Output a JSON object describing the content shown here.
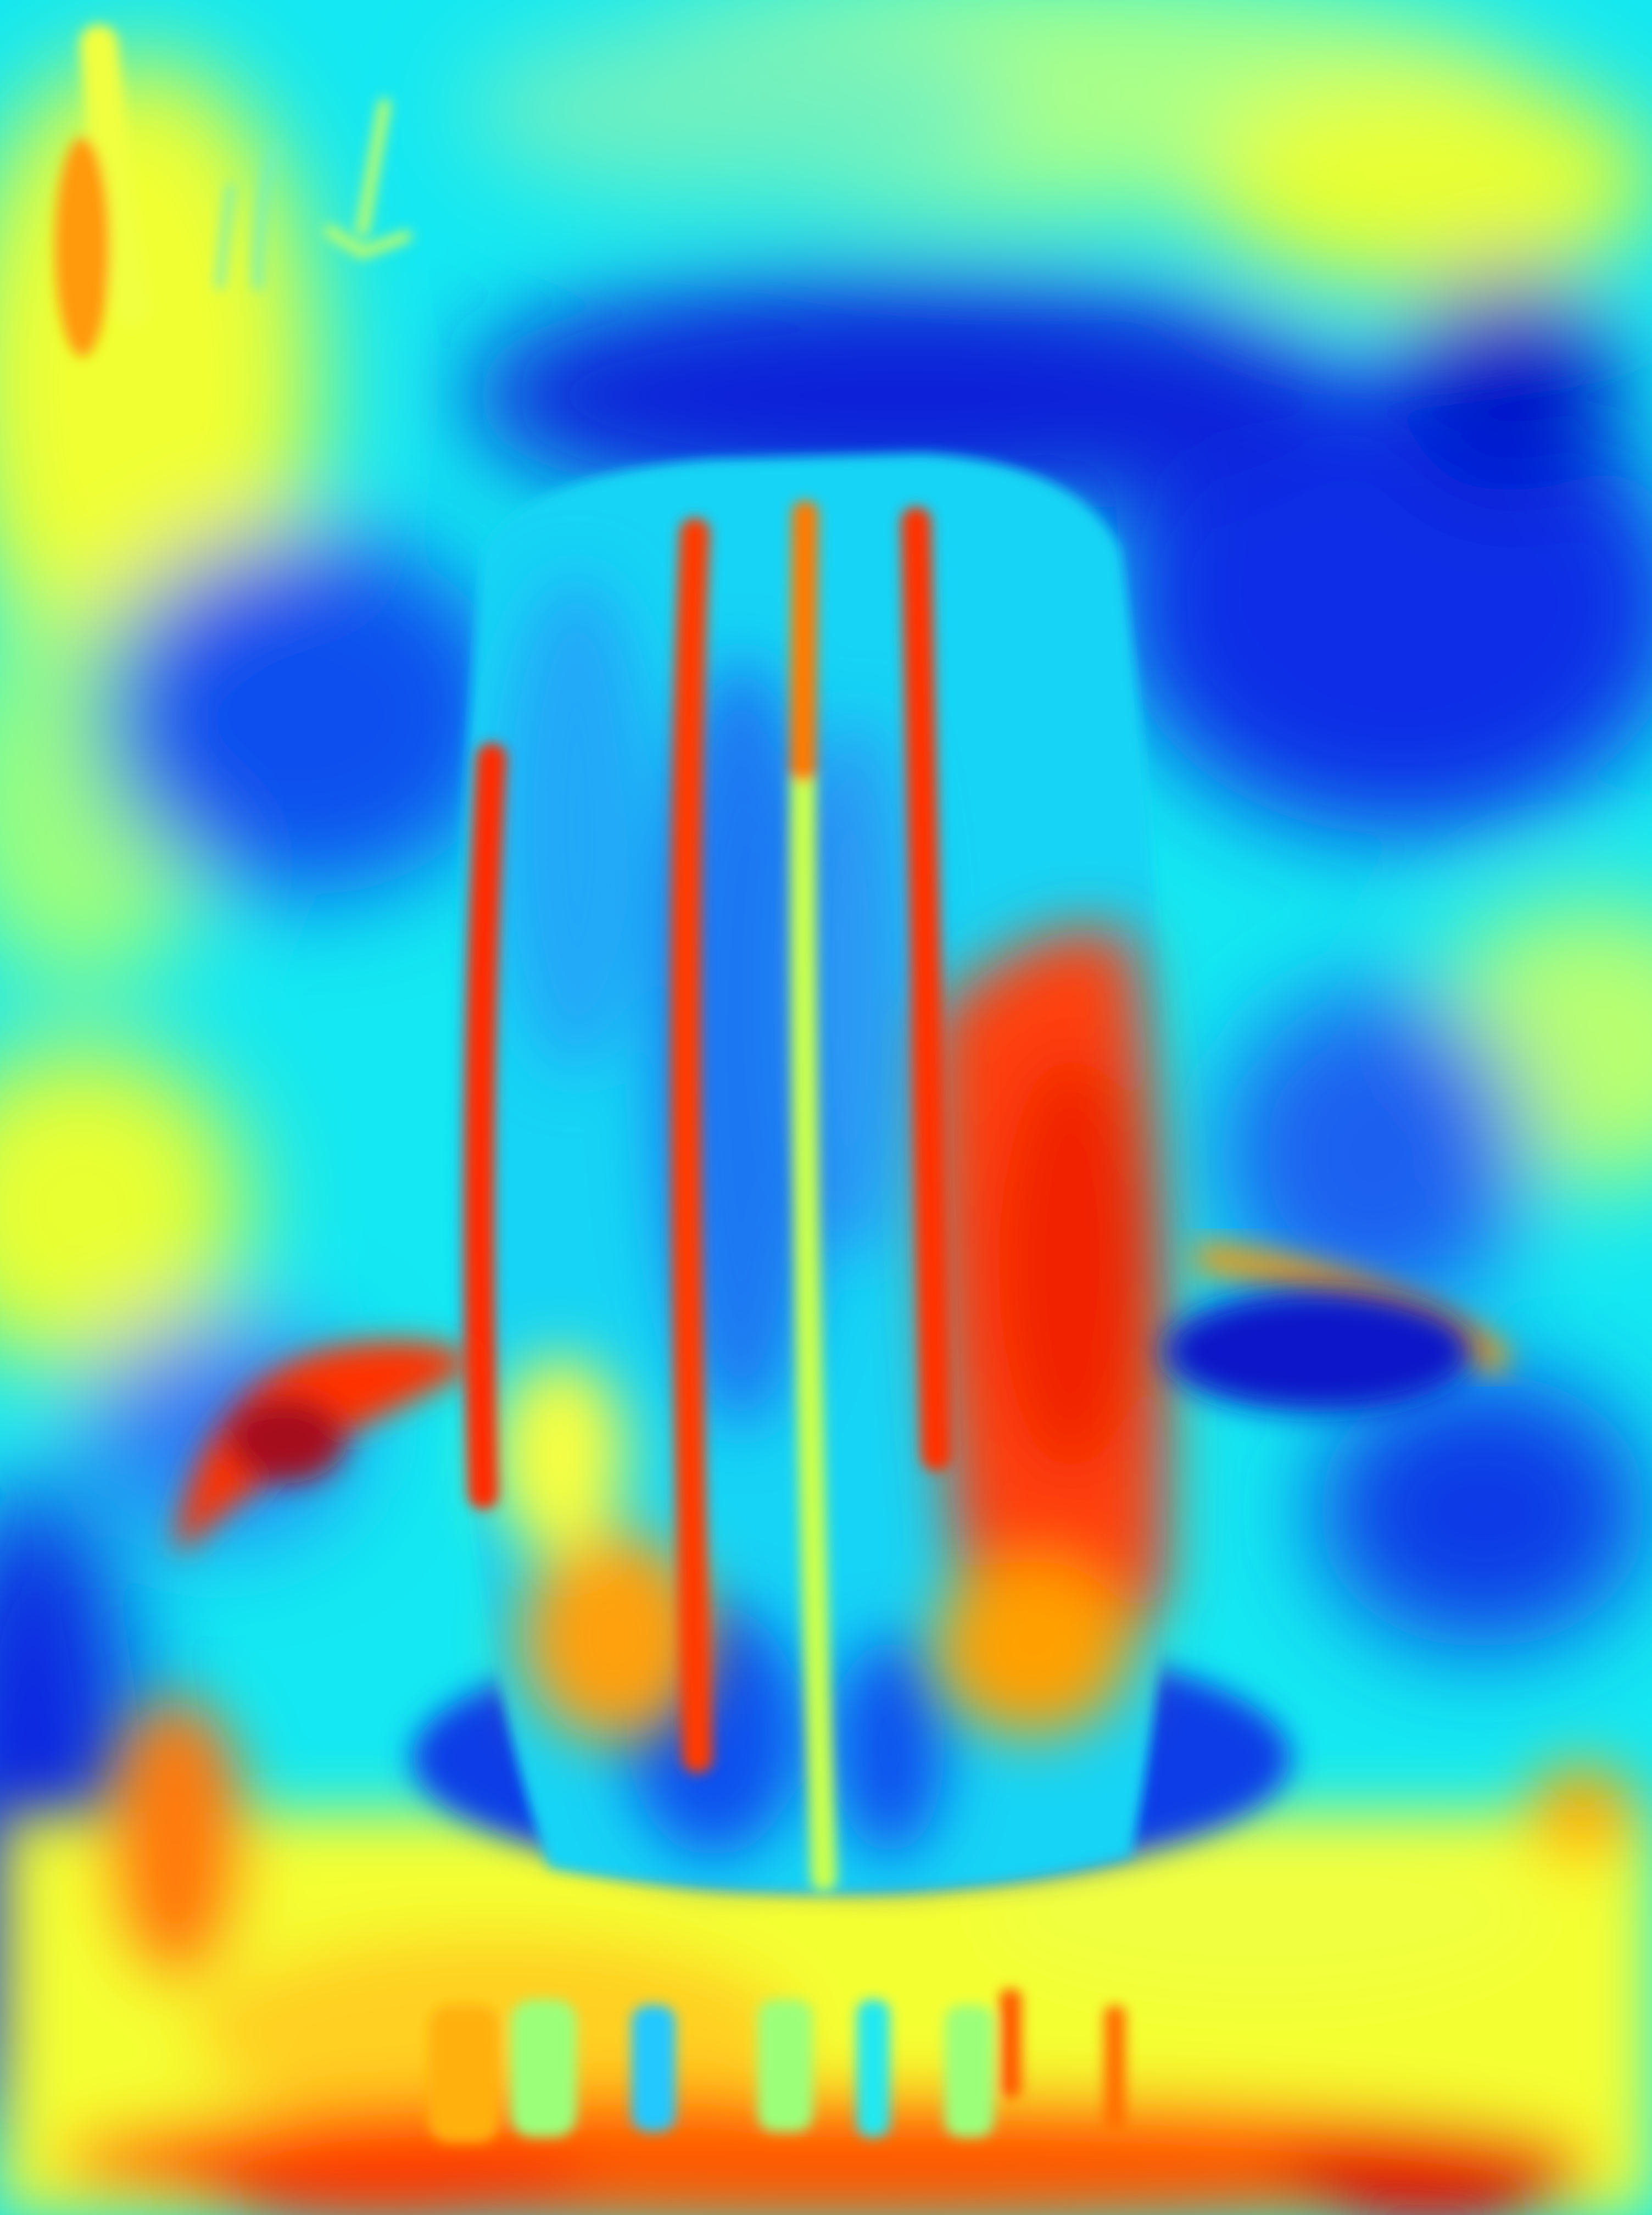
{
  "image": {
    "kind": "heatmap-visualization",
    "subject": "tire-on-ground",
    "colormap": "jet",
    "palette": {
      "deep_blue": "#0a1edc",
      "blue": "#1e6cf5",
      "cyan": "#14e8f2",
      "green": "#8cff9a",
      "yellow": "#f4ff20",
      "orange": "#ffa500",
      "red": "#ff2600",
      "dark_red": "#a50d1e"
    }
  }
}
